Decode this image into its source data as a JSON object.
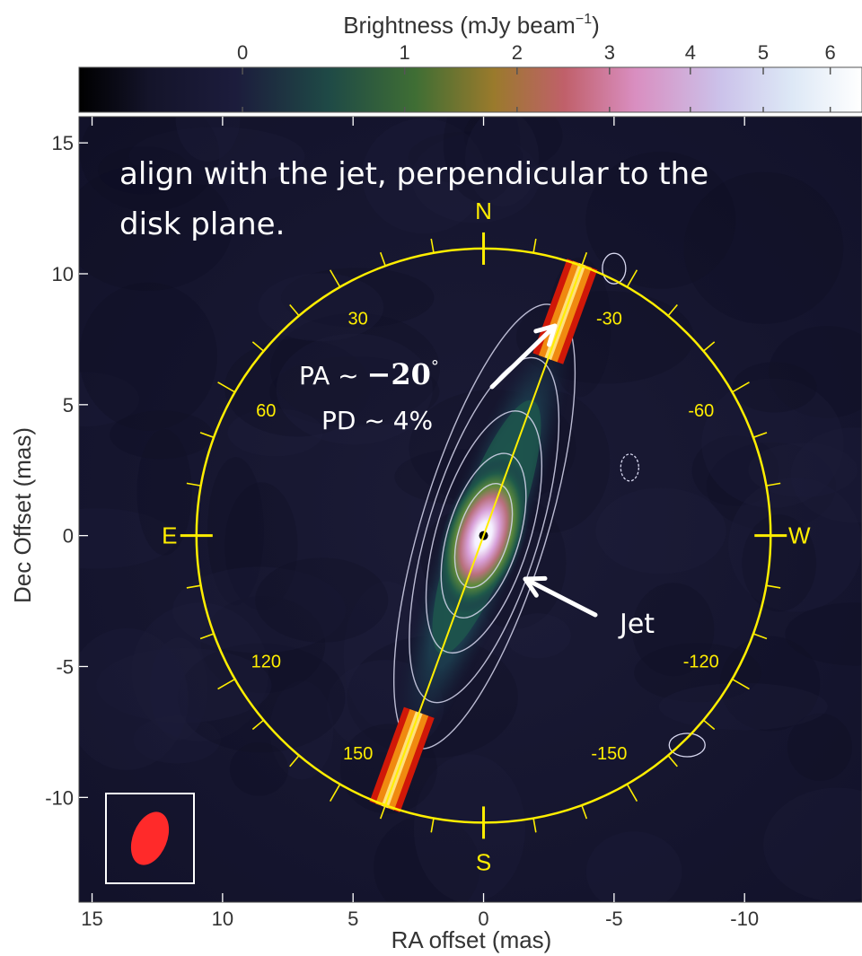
{
  "chart_data": {
    "type": "heatmap",
    "colorbar": {
      "label": "Brightness (mJy beam",
      "label_exp": "−1",
      "label_close": ")",
      "ticks": [
        {
          "value": 0,
          "label": "0"
        },
        {
          "value": 1,
          "label": "1"
        },
        {
          "value": 2,
          "label": "2"
        },
        {
          "value": 3,
          "label": "3"
        },
        {
          "value": 4,
          "label": "4"
        },
        {
          "value": 5,
          "label": "5"
        },
        {
          "value": 6,
          "label": "6"
        }
      ],
      "range": [
        -0.4,
        6.5
      ],
      "scale": "nonlinear (power-law stretch)",
      "colormap": [
        "#000000",
        "#1c1c3c",
        "#1f4a46",
        "#3f6e34",
        "#9a7a2c",
        "#c0606a",
        "#d98ec0",
        "#c8c8ee",
        "#ffffff"
      ]
    },
    "xlabel": "RA offset (mas)",
    "ylabel": "Dec Offset (mas)",
    "xlim": [
      15.5,
      -14.5
    ],
    "ylim": [
      -14,
      16
    ],
    "x_reversed": true,
    "xticks": [
      {
        "value": 15,
        "label": "15"
      },
      {
        "value": 10,
        "label": "10"
      },
      {
        "value": 5,
        "label": "5"
      },
      {
        "value": 0,
        "label": "0"
      },
      {
        "value": -5,
        "label": "-5"
      },
      {
        "value": -10,
        "label": "-10"
      }
    ],
    "yticks": [
      {
        "value": 15,
        "label": "15"
      },
      {
        "value": 10,
        "label": "10"
      },
      {
        "value": 5,
        "label": "5"
      },
      {
        "value": 0,
        "label": "0"
      },
      {
        "value": -5,
        "label": "-5"
      },
      {
        "value": -10,
        "label": "-10"
      }
    ],
    "grid": false,
    "jet": {
      "position_angle_deg": -20,
      "peak_brightness_mJy_per_beam": 6.5,
      "extent_mas": 8
    },
    "polarization_wedge": {
      "position_angle_deg": -20
    },
    "compass": {
      "radius_mas": 11,
      "labels": {
        "north": "N",
        "south": "S",
        "east": "E",
        "west": "W"
      },
      "angle_labels": [
        {
          "angle": 30,
          "label": "30"
        },
        {
          "angle": 60,
          "label": "60"
        },
        {
          "angle": 120,
          "label": "120"
        },
        {
          "angle": 150,
          "label": "150"
        },
        {
          "angle": -30,
          "label": "-30"
        },
        {
          "angle": -60,
          "label": "-60"
        },
        {
          "angle": -120,
          "label": "-120"
        },
        {
          "angle": -150,
          "label": "-150"
        }
      ]
    },
    "annotations": {
      "caption": [
        "align with the jet, perpendicular to the",
        "disk plane."
      ],
      "pa_prefix": "PA ~ ",
      "pa_value": "−20",
      "pa_unit": "°",
      "pd_text": "PD ~ 4%",
      "jet_label": "Jet"
    },
    "colors": {
      "compass": "#ffee00",
      "wedge_outer": "#d01808",
      "wedge_mid": "#f08a10",
      "wedge_inner": "#ffe07a",
      "contours": "#d8d8f0",
      "beam": "#ff2a2a",
      "arrows": "#ffffff"
    }
  }
}
